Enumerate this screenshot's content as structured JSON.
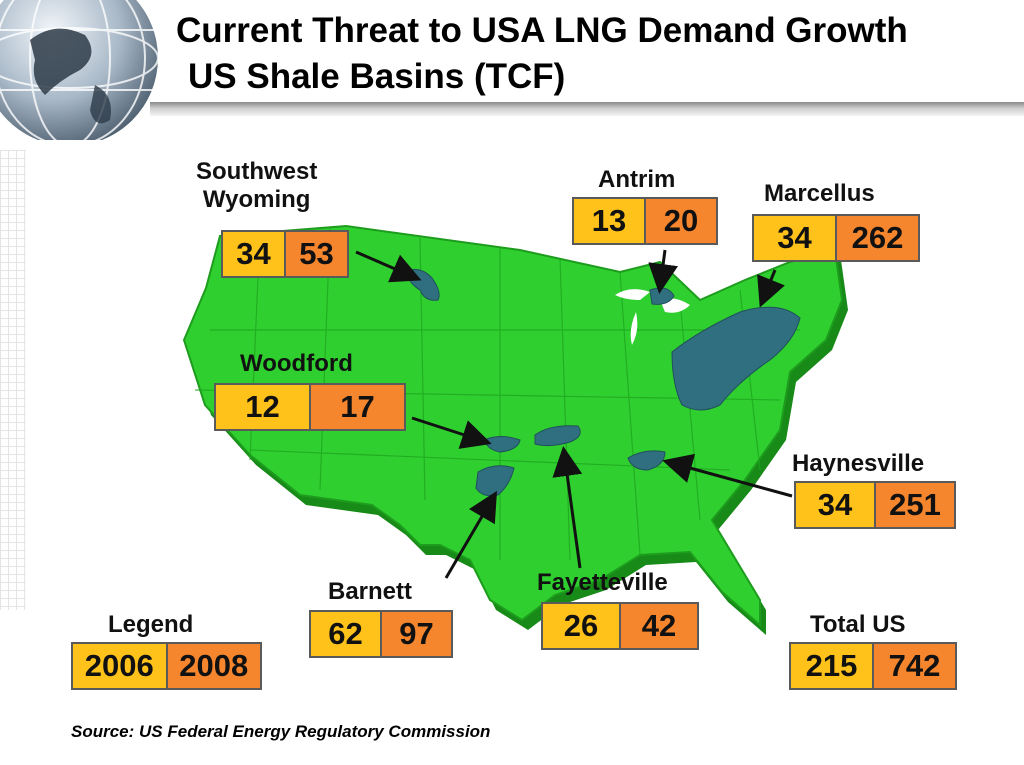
{
  "title": {
    "line1": "Current Threat to USA LNG Demand Growth",
    "line2": "US Shale Basins (TCF)"
  },
  "basins": {
    "southwest_wyoming": {
      "name_line1": "Southwest",
      "name_line2": "Wyoming",
      "v2006": "34",
      "v2008": "53"
    },
    "antrim": {
      "name": "Antrim",
      "v2006": "13",
      "v2008": "20"
    },
    "marcellus": {
      "name": "Marcellus",
      "v2006": "34",
      "v2008": "262"
    },
    "woodford": {
      "name": "Woodford",
      "v2006": "12",
      "v2008": "17"
    },
    "haynesville": {
      "name": "Haynesville",
      "v2006": "34",
      "v2008": "251"
    },
    "barnett": {
      "name": "Barnett",
      "v2006": "62",
      "v2008": "97"
    },
    "fayetteville": {
      "name": "Fayetteville",
      "v2006": "26",
      "v2008": "42"
    }
  },
  "legend": {
    "title": "Legend",
    "y1": "2006",
    "y2": "2008"
  },
  "total": {
    "title": "Total US",
    "v2006": "215",
    "v2008": "742"
  },
  "source": "Source: US Federal Energy Regulatory  Commission",
  "colors": {
    "map_green": "#2fcf2f",
    "basin_blue": "#2f6f7f",
    "year_2006": "#ffc21a",
    "year_2008": "#f5862d"
  }
}
